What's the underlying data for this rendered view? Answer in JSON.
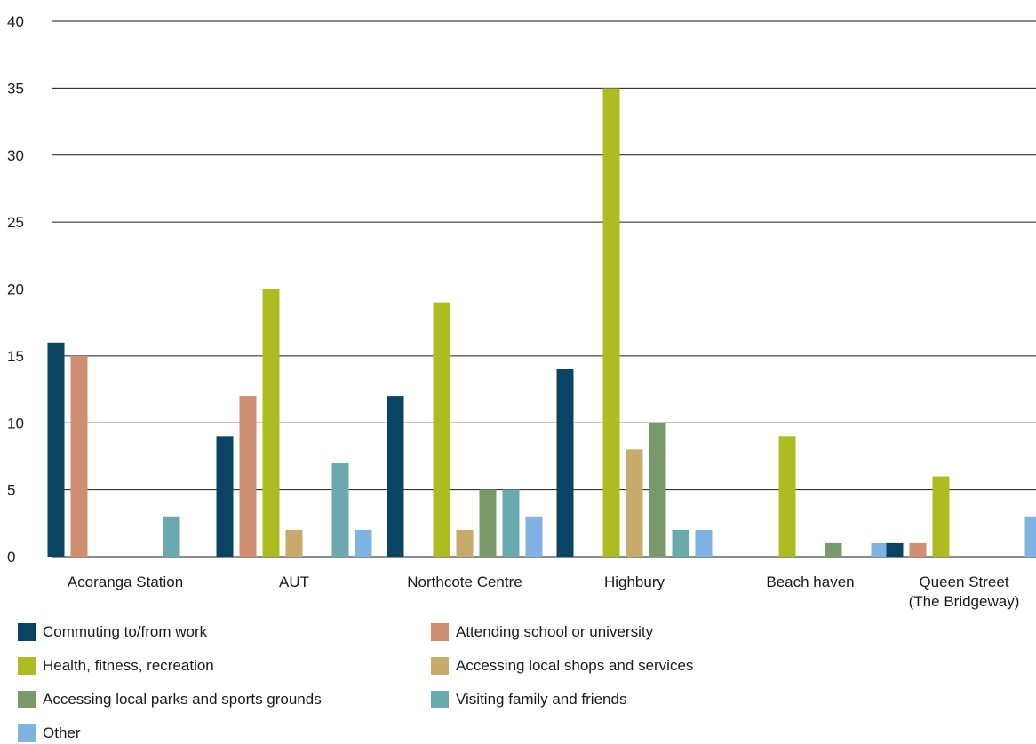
{
  "chart_data": {
    "type": "bar",
    "ylim": [
      0,
      40
    ],
    "yticks": [
      "0",
      "5",
      "10",
      "15",
      "20",
      "25",
      "30",
      "35",
      "40"
    ],
    "grid": true,
    "legend_position": "bottom",
    "categories": [
      [
        "Acoranga Station"
      ],
      [
        "AUT"
      ],
      [
        "Northcote Centre"
      ],
      [
        "Highbury"
      ],
      [
        "Beach haven"
      ],
      [
        "Queen Street",
        "(The Bridgeway)"
      ]
    ],
    "series": [
      {
        "name": "Commuting to/from work",
        "color": "#0b4462",
        "values": [
          16,
          9,
          12,
          14,
          0,
          1
        ]
      },
      {
        "name": "Attending school or university",
        "color": "#cf8d71",
        "values": [
          15,
          12,
          0,
          0,
          0,
          1
        ]
      },
      {
        "name": "Health, fitness, recreation",
        "color": "#aebc23",
        "values": [
          0,
          20,
          19,
          35,
          9,
          6
        ]
      },
      {
        "name": "Accessing local shops and services",
        "color": "#c8ab6c",
        "values": [
          0,
          2,
          2,
          8,
          0,
          0
        ]
      },
      {
        "name": "Accessing local parks and sports grounds",
        "color": "#7a9a6b",
        "values": [
          0,
          0,
          5,
          10,
          1,
          0
        ]
      },
      {
        "name": "Visiting family and friends",
        "color": "#6aa9ad",
        "values": [
          3,
          7,
          5,
          2,
          0,
          0
        ]
      },
      {
        "name": "Other",
        "color": "#7eb3e2",
        "values": [
          0,
          2,
          3,
          2,
          1,
          3
        ]
      }
    ]
  }
}
